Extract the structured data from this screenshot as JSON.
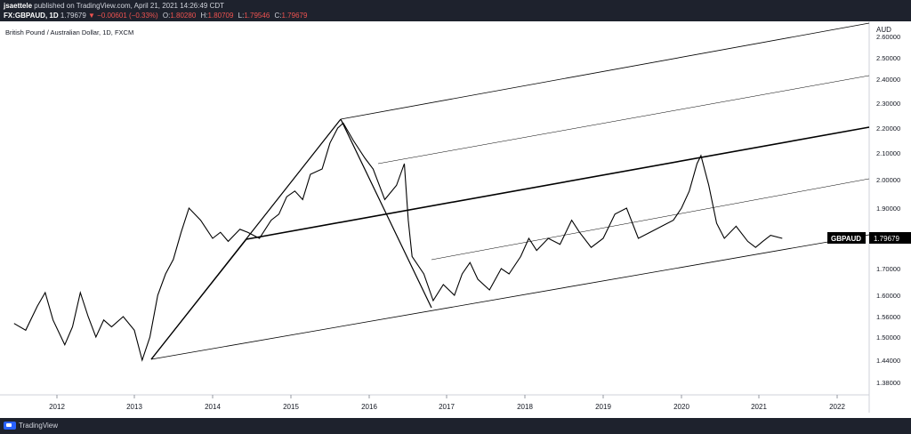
{
  "header": {
    "author": "jsaettele",
    "published": "published on TradingView.com, April 21, 2021 14:26:49 CDT",
    "symbol": "FX:GBPAUD, 1D",
    "last": "1.79679",
    "change": "▼ −0.00601 (−0.33%)",
    "open_label": "O:",
    "open": "1.80280",
    "high_label": "H:",
    "high": "1.80709",
    "low_label": "L:",
    "low": "1.79546",
    "close_label": "C:",
    "close": "1.79679"
  },
  "instrument_label": "British Pound / Australian Dollar, 1D, FXCM",
  "footer": {
    "brand": "TradingView"
  },
  "colors": {
    "background": "#ffffff",
    "bar_dark": "#1e222d",
    "price_line": "#000000",
    "down": "#ef5350"
  },
  "chart_data": {
    "type": "line",
    "currency_label": "AUD",
    "price_tag": {
      "label": "GBPAUD",
      "value": "1.79679"
    },
    "x_ticks": [
      "2012",
      "2013",
      "2014",
      "2015",
      "2016",
      "2017",
      "2018",
      "2019",
      "2020",
      "2021",
      "2022"
    ],
    "y_ticks": [
      "2.60000",
      "2.50000",
      "2.40000",
      "2.30000",
      "2.20000",
      "2.10000",
      "2.00000",
      "1.90000",
      "1.80000",
      "1.70000",
      "1.60000",
      "1.56000",
      "1.50000",
      "1.44000",
      "1.38000"
    ],
    "x_range": [
      2011.45,
      2022.6
    ],
    "series": [
      {
        "values_x": [
          2011.45,
          2011.6,
          2011.75,
          2011.85,
          2011.95,
          2012.1,
          2012.2,
          2012.3,
          2012.4,
          2012.5,
          2012.6,
          2012.7,
          2012.85,
          2013.0,
          2013.1,
          2013.2,
          2013.3,
          2013.4,
          2013.5,
          2013.6,
          2013.7,
          2013.85,
          2014.0,
          2014.1,
          2014.2,
          2014.35,
          2014.45,
          2014.6,
          2014.75,
          2014.85,
          2014.95,
          2015.05,
          2015.15,
          2015.25,
          2015.4,
          2015.5,
          2015.6,
          2015.67,
          2015.8,
          2015.95,
          2016.05,
          2016.2,
          2016.35,
          2016.45,
          2016.5,
          2016.55,
          2016.7,
          2016.82,
          2016.95,
          2017.1,
          2017.2,
          2017.3,
          2017.4,
          2017.55,
          2017.7,
          2017.8,
          2017.95,
          2018.05,
          2018.15,
          2018.3,
          2018.45,
          2018.6,
          2018.7,
          2018.85,
          2019.0,
          2019.15,
          2019.3,
          2019.45,
          2019.6,
          2019.75,
          2019.9,
          2020.0,
          2020.1,
          2020.2,
          2020.25,
          2020.35,
          2020.45,
          2020.55,
          2020.7,
          2020.85,
          2020.95,
          2021.05,
          2021.15,
          2021.3
        ],
        "values_y": [
          1.54,
          1.52,
          1.58,
          1.61,
          1.55,
          1.48,
          1.53,
          1.61,
          1.56,
          1.5,
          1.55,
          1.53,
          1.56,
          1.52,
          1.44,
          1.5,
          1.6,
          1.68,
          1.73,
          1.82,
          1.9,
          1.86,
          1.8,
          1.82,
          1.79,
          1.83,
          1.82,
          1.8,
          1.86,
          1.88,
          1.94,
          1.96,
          1.93,
          2.02,
          2.04,
          2.14,
          2.2,
          2.22,
          2.15,
          2.08,
          2.04,
          1.93,
          1.98,
          2.06,
          1.86,
          1.74,
          1.68,
          1.59,
          1.64,
          1.6,
          1.68,
          1.72,
          1.66,
          1.62,
          1.7,
          1.68,
          1.74,
          1.8,
          1.76,
          1.8,
          1.78,
          1.86,
          1.82,
          1.77,
          1.8,
          1.88,
          1.9,
          1.8,
          1.82,
          1.84,
          1.86,
          1.9,
          1.96,
          2.06,
          2.09,
          1.98,
          1.85,
          1.8,
          1.84,
          1.79,
          1.77,
          1.79,
          1.81,
          1.8
        ]
      }
    ],
    "grid": false,
    "legend": "none"
  }
}
